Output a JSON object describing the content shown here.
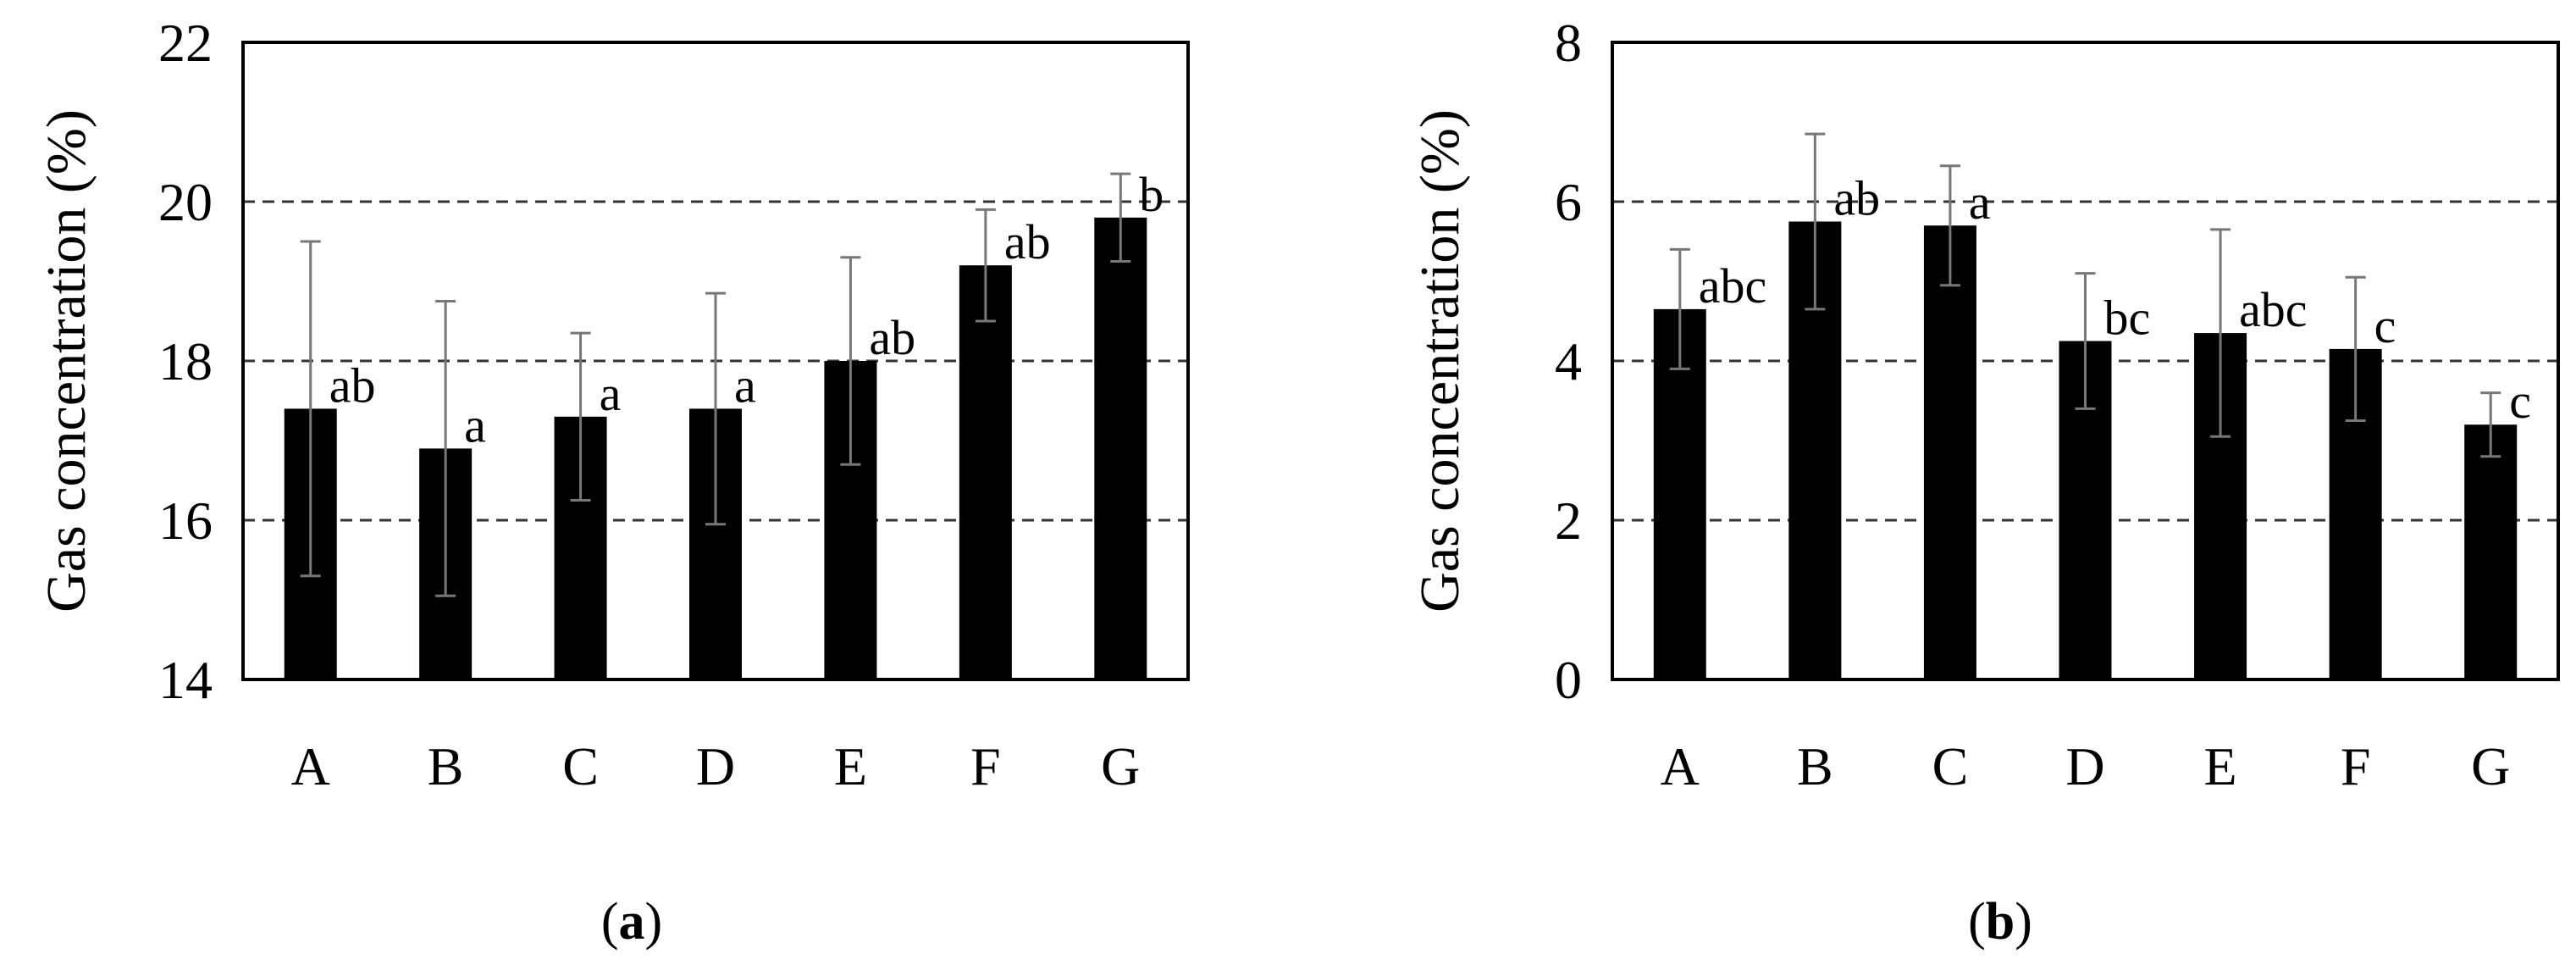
{
  "chart_data": [
    {
      "type": "bar",
      "panel_label": "a",
      "title": "",
      "xlabel": "",
      "ylabel": "Gas concentration (%)",
      "ylim": [
        14,
        22
      ],
      "yticks": [
        14,
        16,
        18,
        20,
        22
      ],
      "grid": "horizontal dashed at 16, 18, 20",
      "categories": [
        "A",
        "B",
        "C",
        "D",
        "E",
        "F",
        "G"
      ],
      "values": [
        17.4,
        16.9,
        17.3,
        17.4,
        18.0,
        19.2,
        19.8
      ],
      "errors": [
        2.1,
        1.85,
        1.05,
        1.45,
        1.3,
        0.7,
        0.55
      ],
      "letters": [
        "ab",
        "a",
        "a",
        "a",
        "ab",
        "ab",
        "b"
      ]
    },
    {
      "type": "bar",
      "panel_label": "b",
      "title": "",
      "xlabel": "",
      "ylabel": "Gas concentration (%)",
      "ylim": [
        0,
        8
      ],
      "yticks": [
        0,
        2,
        4,
        6,
        8
      ],
      "grid": "horizontal dashed at 2, 4, 6",
      "categories": [
        "A",
        "B",
        "C",
        "D",
        "E",
        "F",
        "G"
      ],
      "values": [
        4.65,
        5.75,
        5.7,
        4.25,
        4.35,
        4.15,
        3.2
      ],
      "errors": [
        0.75,
        1.1,
        0.75,
        0.85,
        1.3,
        0.9,
        0.4
      ],
      "letters": [
        "abc",
        "ab",
        "a",
        "bc",
        "abc",
        "c",
        "c"
      ]
    }
  ]
}
